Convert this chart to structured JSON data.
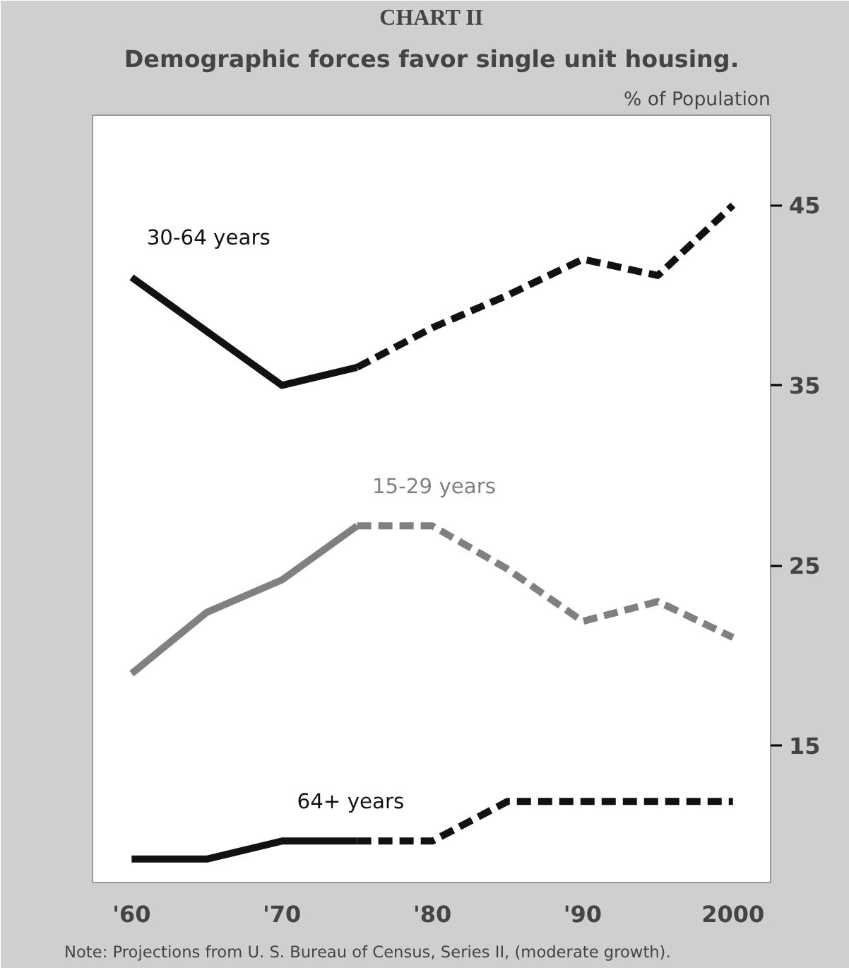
{
  "chart_data": {
    "type": "line",
    "title": "CHART II",
    "subtitle": "Demographic forces favor single unit housing.",
    "ylabel": "% of Population",
    "xlim": [
      1957.4,
      2002.5
    ],
    "ylim": [
      7.4,
      50
    ],
    "xticks": [
      {
        "value": 1960,
        "label": "'60"
      },
      {
        "value": 1970,
        "label": "'70"
      },
      {
        "value": 1980,
        "label": "'80"
      },
      {
        "value": 1990,
        "label": "'90"
      },
      {
        "value": 2000,
        "label": "2000"
      }
    ],
    "yticks": [
      15,
      25,
      35,
      45
    ],
    "series": [
      {
        "name": "30-64 years",
        "color": "#111111",
        "line_style": "solid",
        "x": [
          1960,
          1970,
          1975
        ],
        "values": [
          41,
          35,
          36
        ]
      },
      {
        "color": "#111111",
        "line_style": "dashed",
        "x": [
          1975,
          1980,
          1985,
          1990,
          1995,
          2000
        ],
        "values": [
          36,
          38.2,
          40,
          42,
          41.1,
          45
        ]
      },
      {
        "name": "15-29 years",
        "color": "#808080",
        "line_style": "solid",
        "x": [
          1960,
          1965,
          1970,
          1975
        ],
        "values": [
          19,
          22.4,
          24.2,
          27.2
        ]
      },
      {
        "color": "#808080",
        "line_style": "dashed",
        "x": [
          1975,
          1980,
          1985,
          1990,
          1995,
          2000
        ],
        "values": [
          27.2,
          27.2,
          24.8,
          21.9,
          23,
          21
        ]
      },
      {
        "name": "64+ years",
        "color": "#111111",
        "line_style": "solid",
        "x": [
          1960,
          1965,
          1970,
          1975
        ],
        "values": [
          8.7,
          8.7,
          9.7,
          9.7
        ]
      },
      {
        "color": "#111111",
        "line_style": "dashed",
        "x": [
          1975,
          1980,
          1985,
          1990,
          1995,
          2000
        ],
        "values": [
          9.7,
          9.7,
          11.9,
          11.9,
          11.9,
          11.9
        ]
      }
    ],
    "grid": false,
    "annotations": [
      "Note: Projections from U. S. Bureau of Census, Series II, (moderate growth)."
    ]
  }
}
